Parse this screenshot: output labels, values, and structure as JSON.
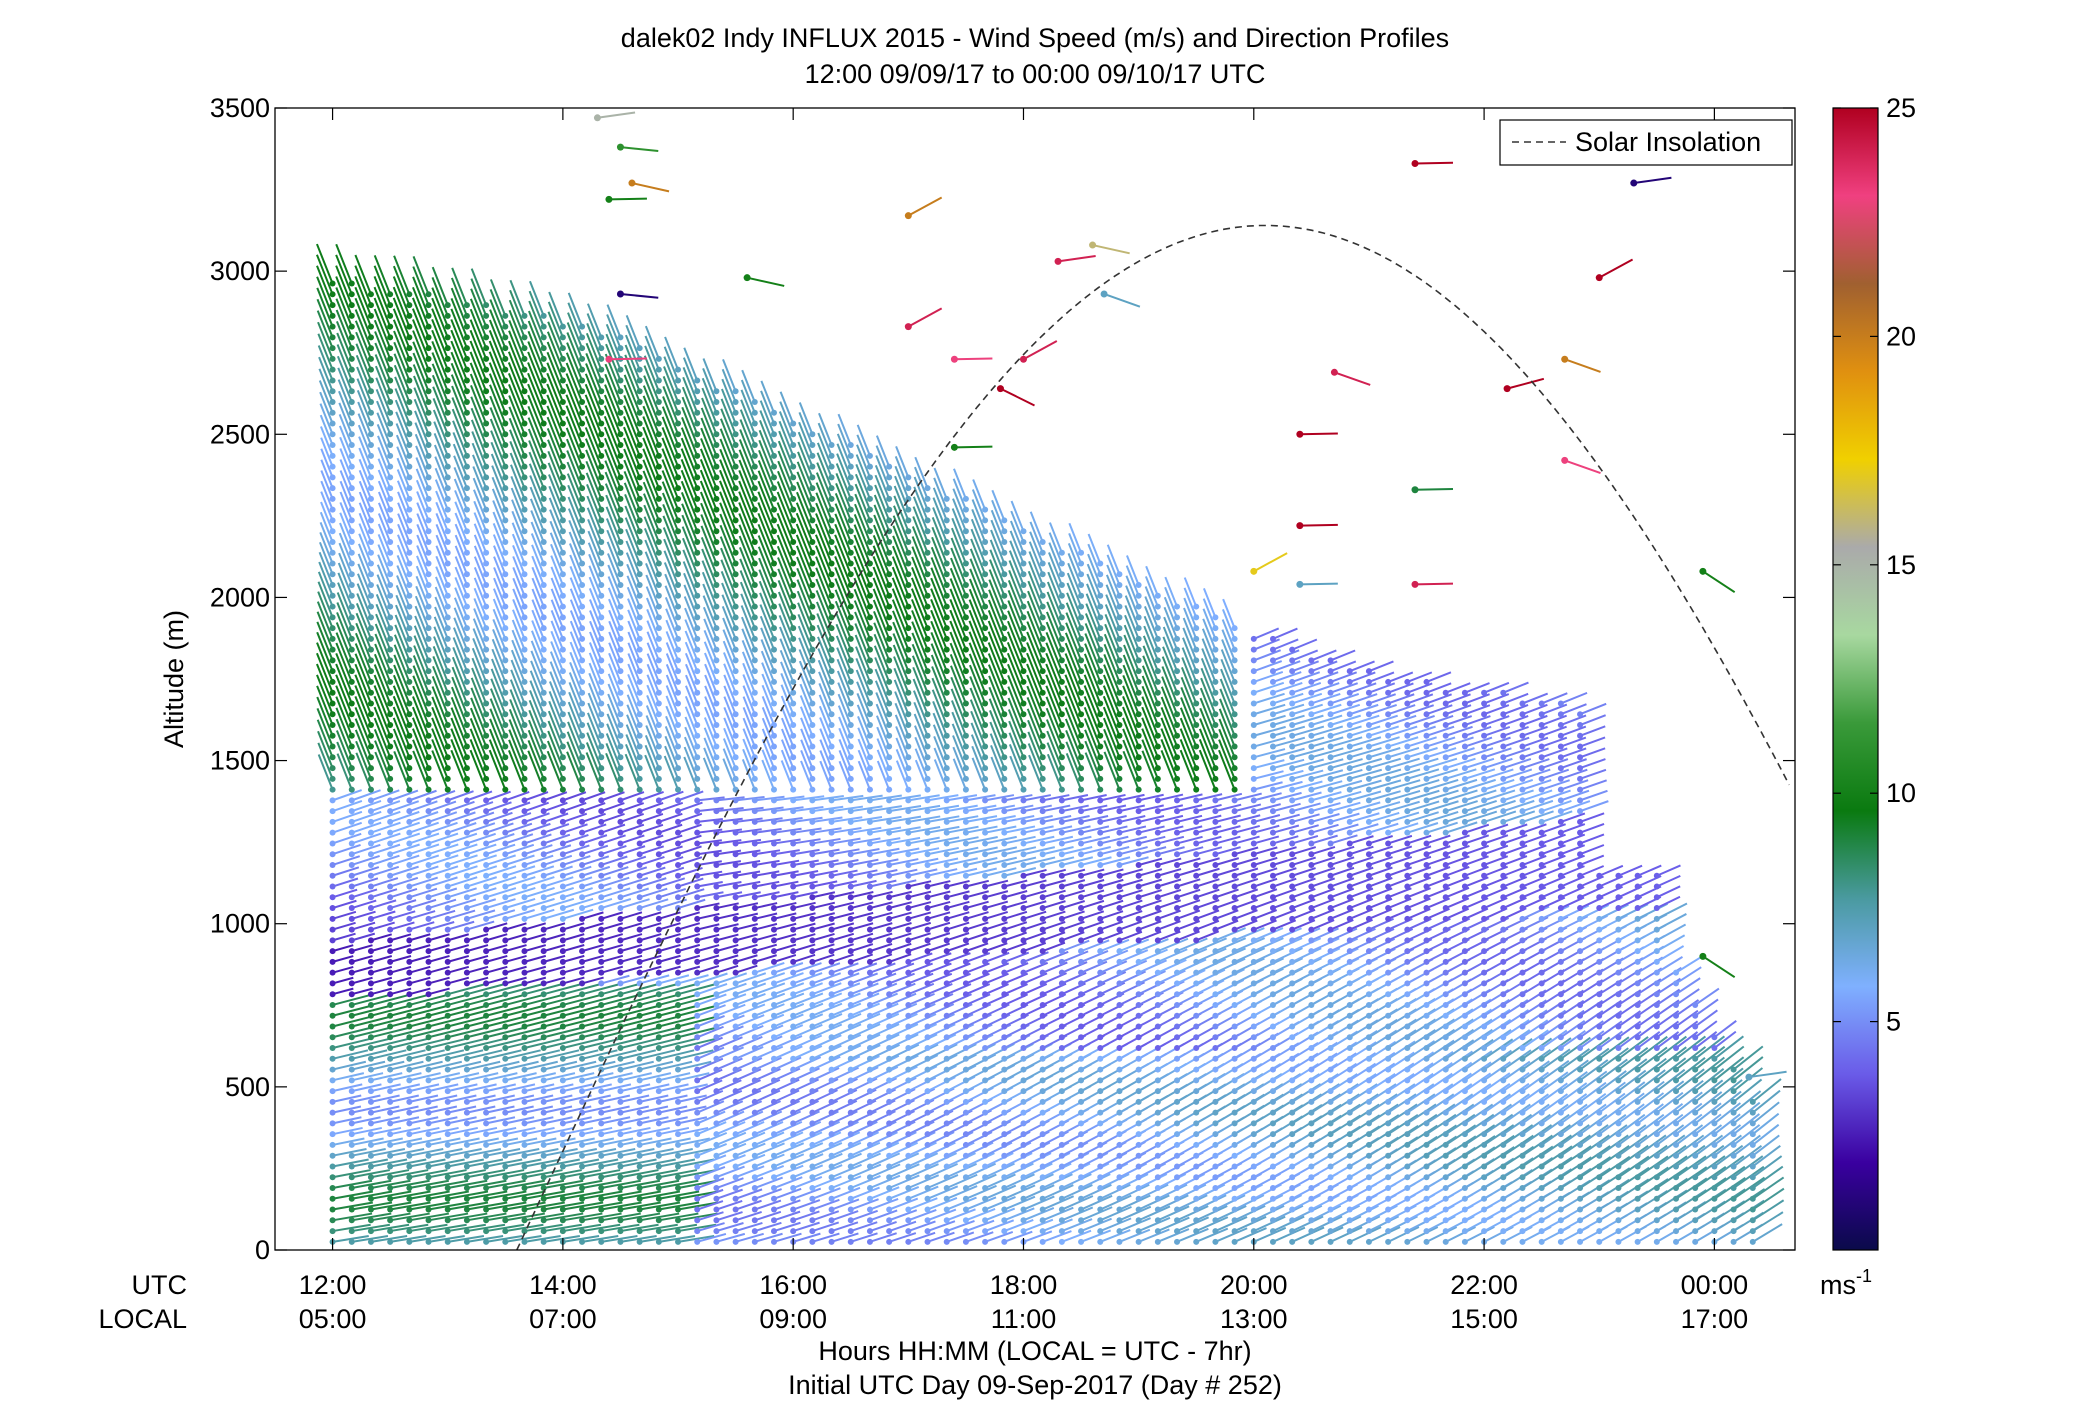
{
  "chart_data": {
    "type": "wind-profile",
    "title": "dalek02 Indy INFLUX 2015 - Wind Speed (m/s) and Direction Profiles",
    "subtitle": "12:00 09/09/17 to 00:00 09/10/17  UTC",
    "ylabel": "Altitude (m)",
    "xlabel": "Hours HH:MM  (LOCAL = UTC - 7hr)",
    "xlabel2": "Initial UTC Day 09-Sep-2017 (Day # 252)",
    "row_label_utc": "UTC",
    "row_label_local": "LOCAL",
    "xlim_hours": [
      11.5,
      24.7
    ],
    "ylim": [
      0,
      3500
    ],
    "y_ticks": [
      "0",
      "500",
      "1000",
      "1500",
      "2000",
      "2500",
      "3000",
      "3500"
    ],
    "x_ticks": [
      {
        "hour": 12,
        "utc": "12:00",
        "local": "05:00"
      },
      {
        "hour": 14,
        "utc": "14:00",
        "local": "07:00"
      },
      {
        "hour": 16,
        "utc": "16:00",
        "local": "09:00"
      },
      {
        "hour": 18,
        "utc": "18:00",
        "local": "11:00"
      },
      {
        "hour": 20,
        "utc": "20:00",
        "local": "13:00"
      },
      {
        "hour": 22,
        "utc": "22:00",
        "local": "15:00"
      },
      {
        "hour": 24,
        "utc": "00:00",
        "local": "17:00"
      }
    ],
    "legend": {
      "label": "Solar Insolation",
      "position": "top-right"
    },
    "colorbar": {
      "range": [
        0,
        25
      ],
      "ticks": [
        "5",
        "10",
        "15",
        "20",
        "25"
      ],
      "unit_base": "ms",
      "unit_exp": "-1",
      "stops": [
        "#0a0a4a",
        "#3a00a0",
        "#6a5be8",
        "#7fb0ff",
        "#4a9aa0",
        "#0a7a10",
        "#3a9a3a",
        "#a8d8a0",
        "#aaaaaa",
        "#f0d000",
        "#e09010",
        "#a06030",
        "#f04080",
        "#b00020"
      ]
    },
    "profiles_sample": [
      {
        "time": "12:00",
        "max_alt_m": 3000
      },
      {
        "time": "14:00",
        "max_alt_m": 2850
      },
      {
        "time": "16:00",
        "max_alt_m": 2550
      },
      {
        "time": "18:00",
        "max_alt_m": 2250
      },
      {
        "time": "20:00",
        "max_alt_m": 1900
      },
      {
        "time": "22:00",
        "max_alt_m": 1700
      },
      {
        "time": "23:30",
        "max_alt_m": 1150
      }
    ],
    "solar_insolation_curve": {
      "peak_hour_utc": 20.1,
      "peak_alt_equiv_m": 3140,
      "rise_hour_utc": 13.6
    }
  }
}
